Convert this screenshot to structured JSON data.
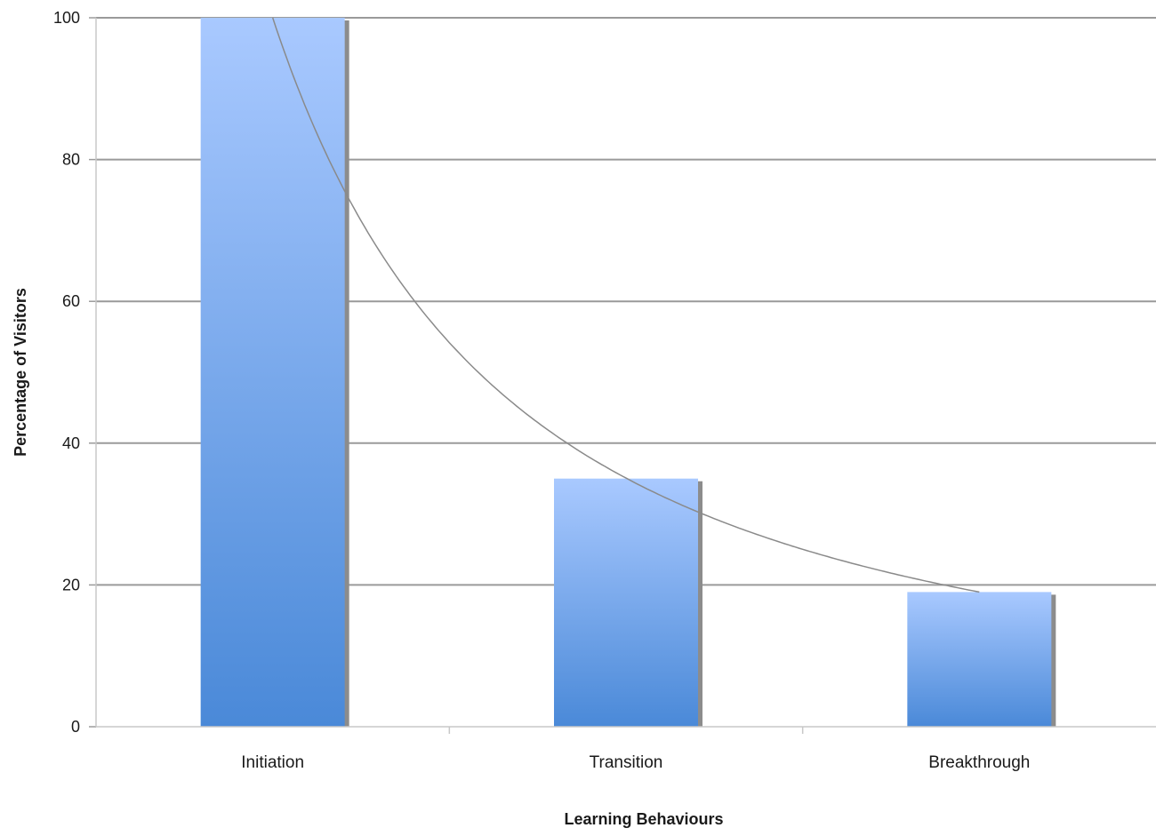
{
  "chart_data": {
    "type": "bar",
    "title": "",
    "xlabel": "Learning Behaviours",
    "ylabel": "Percentage of Visitors",
    "categories": [
      "Initiation",
      "Transition",
      "Breakthrough"
    ],
    "series": [
      {
        "values": [
          100,
          35,
          19
        ]
      }
    ],
    "trendline": {
      "type": "power",
      "through": [
        100,
        35,
        19
      ]
    },
    "ylim": [
      0,
      100
    ],
    "yticks": [
      "0",
      "20",
      "40",
      "60",
      "80",
      "100"
    ],
    "grid": true,
    "legend": "none",
    "colors": {
      "bar_top": "#a9c9ff",
      "bar_bottom": "#4a89d8",
      "bar_shadow": "#8c8c8c",
      "grid": "#9a9a9a",
      "trend": "#8a8a8a"
    }
  }
}
